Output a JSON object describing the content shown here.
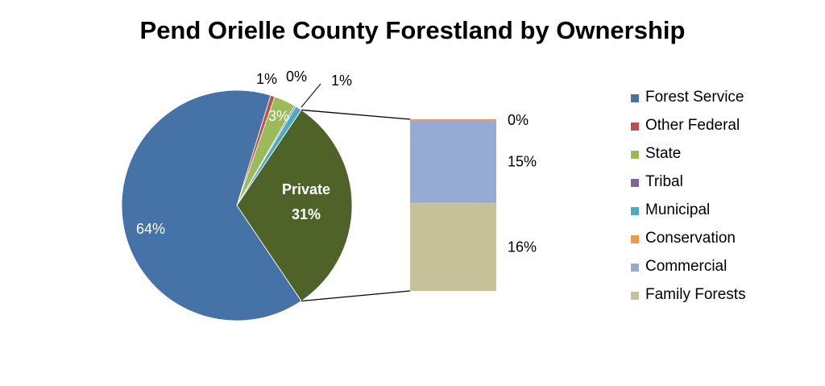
{
  "chart_data": {
    "type": "pie",
    "title": "Pend Orielle County Forestland by Ownership",
    "series": [
      {
        "name": "Forest Service",
        "value": 64,
        "label": "64%",
        "color": "#4572A7"
      },
      {
        "name": "Other Federal",
        "value": 0.6,
        "label": "1%",
        "color": "#C0504D"
      },
      {
        "name": "State",
        "value": 3,
        "label": "3%",
        "color": "#9BBB59"
      },
      {
        "name": "Tribal",
        "value": 0.2,
        "label": "0%",
        "color": "#8064A2"
      },
      {
        "name": "Municipal",
        "value": 0.9,
        "label": "1%",
        "color": "#4BACC6"
      },
      {
        "name": "Private",
        "value": 31,
        "label": "31%",
        "color": "#4F6228"
      }
    ],
    "breakdown": {
      "parent": "Private",
      "parent_label": "Private",
      "items": [
        {
          "name": "Conservation",
          "value": 0.2,
          "label": "0%",
          "color": "#F79646"
        },
        {
          "name": "Commercial",
          "value": 15,
          "label": "15%",
          "color": "#95ABD3"
        },
        {
          "name": "Family Forests",
          "value": 16,
          "label": "16%",
          "color": "#C7C19A"
        }
      ]
    },
    "legend": {
      "placement": "right",
      "entries": [
        {
          "label": "Forest Service",
          "color": "#4572A7"
        },
        {
          "label": "Other Federal",
          "color": "#C0504D"
        },
        {
          "label": "State",
          "color": "#9BBB59"
        },
        {
          "label": "Tribal",
          "color": "#8064A2"
        },
        {
          "label": "Municipal",
          "color": "#4BACC6"
        },
        {
          "label": "Conservation",
          "color": "#F79646"
        },
        {
          "label": "Commercial",
          "color": "#95ABD3"
        },
        {
          "label": "Family Forests",
          "color": "#C7C19A"
        }
      ]
    }
  }
}
